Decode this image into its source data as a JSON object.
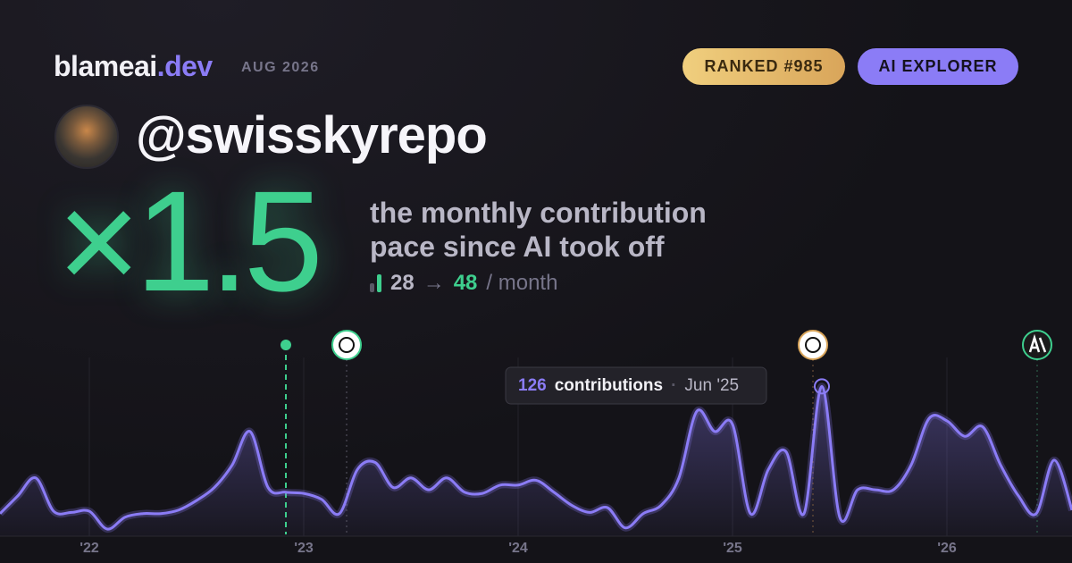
{
  "header": {
    "brand": "blameai",
    "brand_suffix": ".dev",
    "date": "AUG 2026",
    "rank": "RANKED #985",
    "badge": "AI EXPLORER",
    "handle": "@swisskyrepo"
  },
  "headline": {
    "multiplier": "×1.5",
    "line1": "the monthly contribution",
    "line2": "pace since AI took off",
    "before": 28,
    "arrow": "→",
    "after": 48,
    "unit": "/ month"
  },
  "chart_data": {
    "type": "line",
    "categories": [
      null,
      null,
      null,
      null,
      null,
      "'22",
      null,
      null,
      null,
      null,
      null,
      null,
      null,
      null,
      null,
      null,
      null,
      "'23",
      null,
      null,
      null,
      null,
      null,
      null,
      null,
      null,
      null,
      null,
      null,
      "'24",
      null,
      null,
      null,
      null,
      null,
      null,
      null,
      null,
      null,
      null,
      null,
      "'25",
      null,
      null,
      null,
      null,
      null,
      null,
      null,
      null,
      null,
      null,
      null,
      "'26",
      null,
      null,
      null,
      null,
      null,
      null,
      null
    ],
    "series": [
      {
        "name": "contributions",
        "color": "#8b7cf6",
        "values": [
          19,
          34,
          49,
          21,
          20,
          21,
          6,
          16,
          19,
          19,
          22,
          30,
          41,
          60,
          88,
          41,
          37,
          36,
          31,
          19,
          56,
          62,
          41,
          49,
          39,
          49,
          37,
          36,
          43,
          43,
          47,
          37,
          26,
          20,
          24,
          7,
          19,
          26,
          49,
          105,
          88,
          94,
          19,
          56,
          71,
          19,
          126,
          16,
          39,
          39,
          39,
          60,
          99,
          97,
          84,
          92,
          60,
          34,
          19,
          64,
          22
        ]
      }
    ],
    "ylim": [
      0,
      130
    ],
    "grid": true,
    "tooltip": {
      "index": 46,
      "date": "Jun '25"
    }
  }
}
